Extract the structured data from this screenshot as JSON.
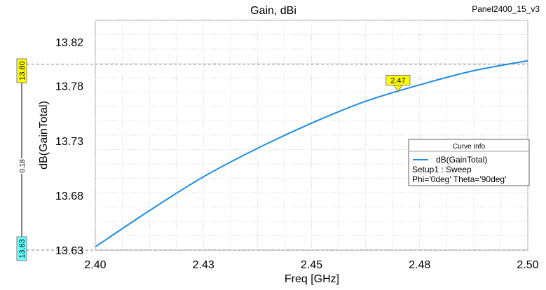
{
  "chart_data": {
    "type": "line",
    "title": "Gain, dBi",
    "project_label": "Panel2400_15_v3",
    "xlabel": "Freq [GHz]",
    "ylabel": "dB(GainTotal)",
    "xlim": [
      2.4,
      2.5
    ],
    "ylim": [
      13.63,
      13.84
    ],
    "x_ticks": [
      2.4,
      2.425,
      2.45,
      2.475,
      2.5
    ],
    "x_tick_labels": [
      "2.40",
      "2.43",
      "2.45",
      "2.48",
      "2.50"
    ],
    "y_ticks": [
      13.63,
      13.68,
      13.73,
      13.78,
      13.82
    ],
    "y_tick_labels": [
      "13.63",
      "13.68",
      "13.73",
      "13.78",
      "13.82"
    ],
    "grid": true,
    "series": [
      {
        "name": "dB(GainTotal)",
        "color": "#1e8ce6",
        "x": [
          2.4,
          2.4125,
          2.425,
          2.4375,
          2.45,
          2.4625,
          2.475,
          2.4875,
          2.5
        ],
        "y": [
          13.633,
          13.666,
          13.697,
          13.723,
          13.746,
          13.766,
          13.781,
          13.794,
          13.803
        ]
      }
    ],
    "marker": {
      "x": 2.47,
      "label": "2.47",
      "color": "#ffff00"
    },
    "cursors": {
      "top_value": "13.80",
      "bottom_value": "13.63",
      "delta_label": "0.18",
      "top_color": "#ffff00",
      "bottom_color": "#66ffff"
    },
    "legend": {
      "title": "Curve Info",
      "entry": "dB(GainTotal)",
      "line1": "Setup1 : Sweep",
      "line2": "Phi='0deg' Theta='90deg'",
      "position": "right"
    }
  }
}
